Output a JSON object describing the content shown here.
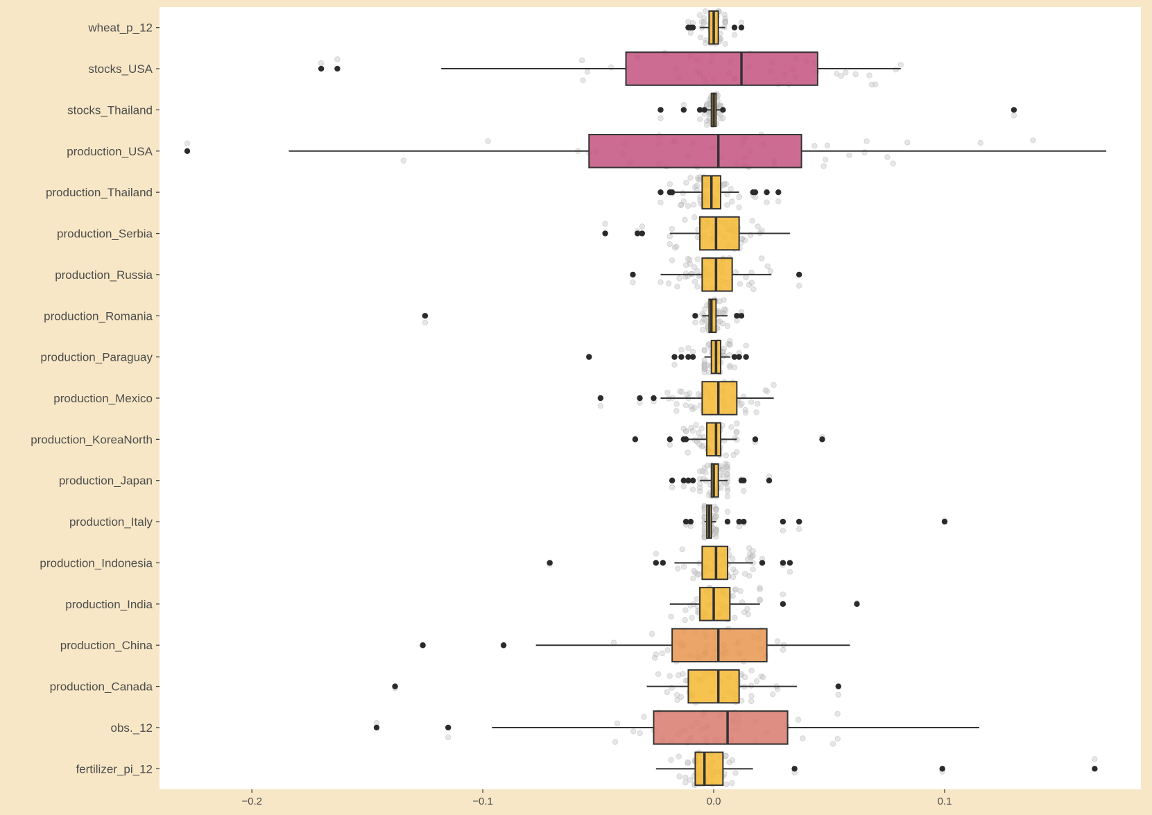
{
  "chart_data": {
    "type": "boxplot",
    "orientation": "horizontal",
    "title": "",
    "xlabel": "",
    "ylabel": "",
    "xlim": [
      -0.24,
      0.185
    ],
    "x_ticks": [
      -0.2,
      -0.1,
      0.0,
      0.1
    ],
    "x_tick_labels": [
      "−0.2",
      "−0.1",
      "0.0",
      "0.1"
    ],
    "grid": false,
    "colors": {
      "background": "#f7e7c6",
      "panel": "#ffffff",
      "fill_low": "#f5b731",
      "fill_mid": "#e8954e",
      "fill_high": "#c4527f",
      "outline": "#333333",
      "jitter": "#bdbdbd"
    },
    "categories": [
      "wheat_p_12",
      "stocks_USA",
      "stocks_Thailand",
      "production_USA",
      "production_Thailand",
      "production_Serbia",
      "production_Russia",
      "production_Romania",
      "production_Paraguay",
      "production_Mexico",
      "production_KoreaNorth",
      "production_Japan",
      "production_Italy",
      "production_Indonesia",
      "production_India",
      "production_China",
      "production_Canada",
      "obs._12",
      "fertilizer_pi_12"
    ],
    "boxes": [
      {
        "name": "wheat_p_12",
        "whisker_low": -0.006,
        "q1": -0.002,
        "median": 0.0,
        "q3": 0.002,
        "whisker_high": 0.005,
        "outliers": [
          -0.011,
          -0.01,
          -0.009,
          0.009,
          0.012
        ],
        "color": "#f5b731",
        "spread": 0.012
      },
      {
        "name": "stocks_USA",
        "whisker_low": -0.118,
        "q1": -0.038,
        "median": 0.012,
        "q3": 0.045,
        "whisker_high": 0.081,
        "outliers": [
          -0.17,
          -0.163
        ],
        "color": "#c4527f",
        "spread": 0.1
      },
      {
        "name": "stocks_Thailand",
        "whisker_low": -0.003,
        "q1": -0.001,
        "median": 0.0,
        "q3": 0.001,
        "whisker_high": 0.003,
        "outliers": [
          -0.023,
          -0.013,
          -0.006,
          -0.004,
          0.004,
          0.13
        ],
        "color": "#f5b731",
        "spread": 0.006
      },
      {
        "name": "production_USA",
        "whisker_low": -0.184,
        "q1": -0.054,
        "median": 0.002,
        "q3": 0.038,
        "whisker_high": 0.17,
        "outliers": [
          -0.228
        ],
        "color": "#c4527f",
        "spread": 0.17
      },
      {
        "name": "production_Thailand",
        "whisker_low": -0.017,
        "q1": -0.005,
        "median": -0.001,
        "q3": 0.003,
        "whisker_high": 0.011,
        "outliers": [
          -0.023,
          -0.019,
          -0.018,
          0.017,
          0.018,
          0.023,
          0.028
        ],
        "color": "#f5b731",
        "spread": 0.018
      },
      {
        "name": "production_Serbia",
        "whisker_low": -0.019,
        "q1": -0.006,
        "median": 0.001,
        "q3": 0.011,
        "whisker_high": 0.033,
        "outliers": [
          -0.047,
          -0.033,
          -0.031
        ],
        "color": "#f5b731",
        "spread": 0.035
      },
      {
        "name": "production_Russia",
        "whisker_low": -0.023,
        "q1": -0.005,
        "median": 0.001,
        "q3": 0.008,
        "whisker_high": 0.025,
        "outliers": [
          -0.035,
          0.037
        ],
        "color": "#f5b731",
        "spread": 0.035
      },
      {
        "name": "production_Romania",
        "whisker_low": -0.005,
        "q1": -0.002,
        "median": -0.001,
        "q3": 0.001,
        "whisker_high": 0.006,
        "outliers": [
          -0.125,
          -0.008,
          0.01,
          0.012
        ],
        "color": "#f5b731",
        "spread": 0.01
      },
      {
        "name": "production_Paraguay",
        "whisker_low": -0.004,
        "q1": -0.001,
        "median": 0.001,
        "q3": 0.003,
        "whisker_high": 0.007,
        "outliers": [
          -0.054,
          -0.017,
          -0.014,
          -0.011,
          -0.009,
          0.009,
          0.011,
          0.014
        ],
        "color": "#f5b731",
        "spread": 0.016
      },
      {
        "name": "production_Mexico",
        "whisker_low": -0.023,
        "q1": -0.005,
        "median": 0.002,
        "q3": 0.01,
        "whisker_high": 0.026,
        "outliers": [
          -0.049,
          -0.032,
          -0.026
        ],
        "color": "#f5b731",
        "spread": 0.035
      },
      {
        "name": "production_KoreaNorth",
        "whisker_low": -0.012,
        "q1": -0.003,
        "median": 0.001,
        "q3": 0.003,
        "whisker_high": 0.01,
        "outliers": [
          -0.034,
          -0.019,
          -0.013,
          -0.012,
          0.018,
          0.047
        ],
        "color": "#f5b731",
        "spread": 0.02
      },
      {
        "name": "production_Japan",
        "whisker_low": -0.006,
        "q1": -0.001,
        "median": 0.0,
        "q3": 0.002,
        "whisker_high": 0.006,
        "outliers": [
          -0.018,
          -0.013,
          -0.011,
          -0.009,
          0.012,
          0.013,
          0.024
        ],
        "color": "#f5b731",
        "spread": 0.015
      },
      {
        "name": "production_Italy",
        "whisker_low": -0.004,
        "q1": -0.003,
        "median": -0.002,
        "q3": -0.001,
        "whisker_high": 0.001,
        "outliers": [
          -0.012,
          -0.01,
          0.006,
          0.011,
          0.013,
          0.03,
          0.037,
          0.1
        ],
        "color": "#f5b731",
        "spread": 0.015
      },
      {
        "name": "production_Indonesia",
        "whisker_low": -0.017,
        "q1": -0.005,
        "median": 0.001,
        "q3": 0.006,
        "whisker_high": 0.017,
        "outliers": [
          -0.071,
          -0.025,
          -0.022,
          0.021,
          0.03,
          0.033
        ],
        "color": "#f5b731",
        "spread": 0.03
      },
      {
        "name": "production_India",
        "whisker_low": -0.019,
        "q1": -0.006,
        "median": 0.0,
        "q3": 0.007,
        "whisker_high": 0.02,
        "outliers": [
          0.03,
          0.062
        ],
        "color": "#f5b731",
        "spread": 0.03
      },
      {
        "name": "production_China",
        "whisker_low": -0.077,
        "q1": -0.018,
        "median": 0.002,
        "q3": 0.023,
        "whisker_high": 0.059,
        "outliers": [
          -0.126,
          -0.091
        ],
        "color": "#e8954e",
        "spread": 0.06
      },
      {
        "name": "production_Canada",
        "whisker_low": -0.029,
        "q1": -0.011,
        "median": 0.002,
        "q3": 0.011,
        "whisker_high": 0.036,
        "outliers": [
          -0.138,
          0.054
        ],
        "color": "#f5b731",
        "spread": 0.04
      },
      {
        "name": "obs._12",
        "whisker_low": -0.096,
        "q1": -0.026,
        "median": 0.006,
        "q3": 0.032,
        "whisker_high": 0.115,
        "outliers": [
          -0.146,
          -0.115
        ],
        "color": "#d97a6e",
        "spread": 0.08
      },
      {
        "name": "fertilizer_pi_12",
        "whisker_low": -0.025,
        "q1": -0.008,
        "median": -0.004,
        "q3": 0.004,
        "whisker_high": 0.017,
        "outliers": [
          0.035,
          0.099,
          0.165
        ],
        "color": "#f5b731",
        "spread": 0.02
      }
    ]
  }
}
